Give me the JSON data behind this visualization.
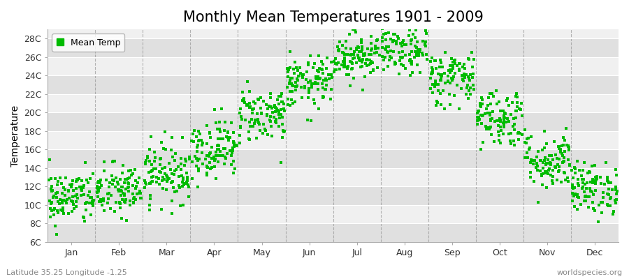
{
  "title": "Monthly Mean Temperatures 1901 - 2009",
  "ylabel": "Temperature",
  "xlabel_months": [
    "Jan",
    "Feb",
    "Mar",
    "Apr",
    "May",
    "Jun",
    "Jul",
    "Aug",
    "Sep",
    "Oct",
    "Nov",
    "Dec"
  ],
  "ytick_labels": [
    "6C",
    "8C",
    "10C",
    "12C",
    "14C",
    "16C",
    "18C",
    "20C",
    "22C",
    "24C",
    "26C",
    "28C"
  ],
  "ytick_values": [
    6,
    8,
    10,
    12,
    14,
    16,
    18,
    20,
    22,
    24,
    26,
    28
  ],
  "ylim": [
    6,
    29
  ],
  "xlim": [
    0.5,
    12.5
  ],
  "legend_label": "Mean Temp",
  "dot_color": "#00bb00",
  "dot_size": 5,
  "background_color": "#ffffff",
  "plot_bg_light": "#f0f0f0",
  "plot_bg_dark": "#e0e0e0",
  "vline_color": "#888888",
  "footnote_left": "Latitude 35.25 Longitude -1.25",
  "footnote_right": "worldspecies.org",
  "monthly_means": [
    10.8,
    11.5,
    13.5,
    16.2,
    19.8,
    23.2,
    26.2,
    26.8,
    23.8,
    19.5,
    14.8,
    11.8
  ],
  "monthly_stds": [
    1.5,
    1.5,
    1.6,
    1.6,
    1.5,
    1.4,
    1.3,
    1.4,
    1.5,
    1.6,
    1.6,
    1.4
  ],
  "n_years": 109,
  "seed": 42,
  "title_fontsize": 15,
  "axis_fontsize": 10,
  "tick_fontsize": 9,
  "footnote_fontsize": 8
}
